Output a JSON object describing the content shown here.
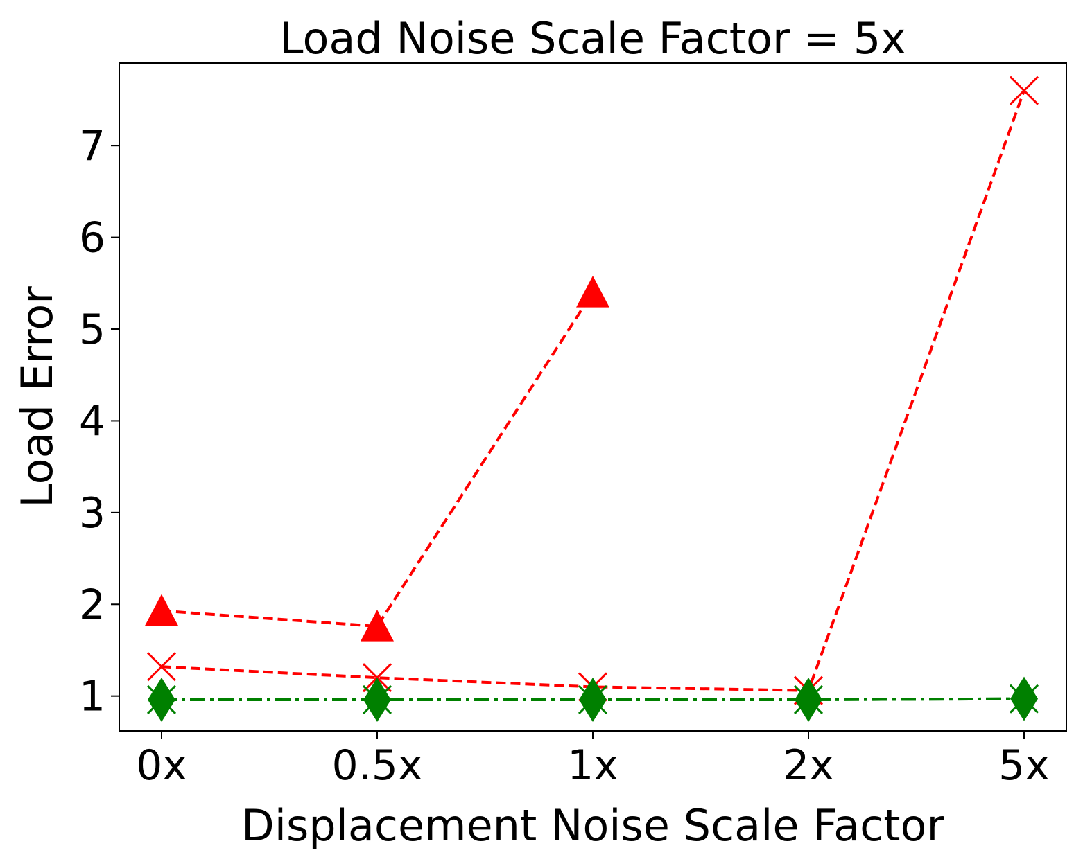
{
  "chart_data": {
    "type": "line",
    "title": "Load Noise Scale Factor = 5x",
    "xlabel": "Displacement Noise Scale Factor",
    "ylabel": "Load Error",
    "categories": [
      "0x",
      "0.5x",
      "1x",
      "2x",
      "5x"
    ],
    "yticks": [
      1,
      2,
      3,
      4,
      5,
      6,
      7
    ],
    "ylim": [
      0.62,
      7.9
    ],
    "grid": false,
    "legend": "none",
    "series": [
      {
        "color": "#ff0000",
        "line": "dashed",
        "marker": "triangle",
        "values": [
          1.93,
          1.76,
          5.4,
          null,
          null
        ]
      },
      {
        "color": "#ff0000",
        "line": "dashed",
        "marker": "x",
        "values": [
          1.32,
          1.2,
          1.1,
          1.06,
          7.6
        ]
      },
      {
        "color": "#008000",
        "line": "dashdot",
        "marker": "x",
        "values": [
          0.96,
          0.96,
          0.96,
          0.96,
          0.97
        ]
      },
      {
        "color": "#008000",
        "line": "dashdot",
        "marker": "diamond",
        "values": [
          0.96,
          0.96,
          0.96,
          0.96,
          0.97
        ]
      }
    ]
  }
}
